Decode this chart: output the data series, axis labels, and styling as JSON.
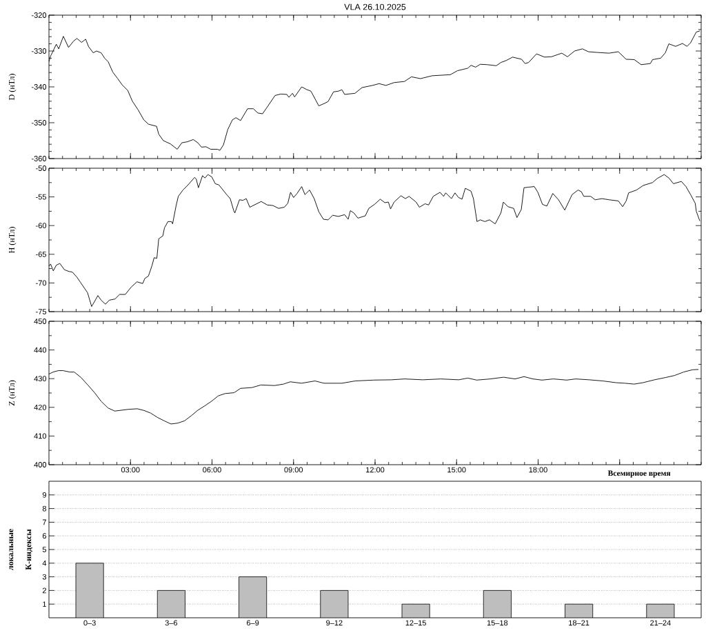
{
  "chart_data": [
    {
      "type": "line",
      "title": "VLA 26.10.2025",
      "ylabel": "D (нТл)",
      "color": "#000000",
      "x": [
        0,
        0.06,
        0.14,
        0.27,
        0.36,
        0.53,
        0.72,
        0.91,
        1.03,
        1.2,
        1.35,
        1.46,
        1.63,
        1.75,
        1.92,
        2.05,
        2.18,
        2.35,
        2.52,
        2.69,
        2.9,
        3.07,
        3.28,
        3.49,
        3.66,
        3.96,
        4.04,
        4.21,
        4.47,
        4.72,
        4.89,
        5.1,
        5.31,
        5.48,
        5.61,
        5.78,
        5.95,
        6.2,
        6.29,
        6.42,
        6.58,
        6.75,
        6.88,
        7.05,
        7.31,
        7.52,
        7.69,
        7.86,
        8.07,
        8.32,
        8.53,
        8.75,
        8.83,
        8.96,
        9.04,
        9.3,
        9.47,
        9.64,
        9.93,
        10.14,
        10.27,
        10.47,
        10.65,
        10.78,
        10.88,
        11.26,
        11.52,
        11.9,
        12.15,
        12.4,
        12.7,
        13.08,
        13.34,
        13.67,
        14.1,
        14.77,
        15.03,
        15.41,
        15.53,
        15.7,
        15.87,
        16.12,
        16.46,
        16.63,
        16.84,
        17.06,
        17.39,
        17.52,
        17.65,
        17.94,
        18.24,
        18.49,
        18.87,
        19.08,
        19.34,
        19.63,
        19.85,
        20.18,
        20.61,
        20.95,
        21.24,
        21.54,
        21.79,
        22.13,
        22.21,
        22.51,
        22.68,
        22.81,
        23.06,
        23.31,
        23.48,
        23.61,
        23.82,
        23.95
      ],
      "values": [
        -333.0,
        -331.4,
        -330.2,
        -328.1,
        -329.4,
        -325.9,
        -329.0,
        -327.2,
        -326.5,
        -327.6,
        -326.7,
        -328.8,
        -330.5,
        -330.0,
        -330.5,
        -332.0,
        -333.0,
        -335.9,
        -337.6,
        -339.4,
        -341.0,
        -344.0,
        -346.4,
        -349.2,
        -350.4,
        -351.0,
        -353.2,
        -355.0,
        -355.9,
        -357.4,
        -355.6,
        -355.3,
        -354.7,
        -355.6,
        -356.8,
        -356.7,
        -357.4,
        -357.4,
        -357.7,
        -356.2,
        -351.9,
        -349.2,
        -348.6,
        -349.4,
        -346.1,
        -346.1,
        -347.3,
        -347.5,
        -345.2,
        -342.4,
        -342.0,
        -342.1,
        -342.9,
        -341.8,
        -342.8,
        -340.0,
        -340.7,
        -341.2,
        -345.3,
        -344.6,
        -344.1,
        -341.4,
        -341.2,
        -340.8,
        -342.1,
        -341.8,
        -340.2,
        -339.6,
        -339.1,
        -339.6,
        -338.8,
        -338.5,
        -337.2,
        -337.7,
        -336.9,
        -336.6,
        -335.5,
        -334.8,
        -334.0,
        -334.5,
        -333.7,
        -333.8,
        -334.1,
        -333.2,
        -332.6,
        -331.7,
        -332.3,
        -333.5,
        -333.2,
        -330.8,
        -331.7,
        -331.6,
        -330.6,
        -331.6,
        -330.0,
        -329.4,
        -330.2,
        -330.4,
        -330.6,
        -330.2,
        -332.3,
        -332.4,
        -333.8,
        -333.5,
        -332.4,
        -332.0,
        -330.5,
        -328.0,
        -328.7,
        -327.9,
        -328.7,
        -327.7,
        -324.7,
        -324.4
      ],
      "xlim": [
        0,
        24
      ],
      "xticks": [
        3,
        6,
        9,
        12,
        15,
        18,
        21
      ],
      "ylim": [
        -360,
        -320
      ],
      "yticks": [
        -360,
        -350,
        -340,
        -330,
        -320
      ],
      "tick_labels": "y"
    },
    {
      "type": "line",
      "ylabel": "H (нТл)",
      "color": "#000000",
      "x": [
        0,
        0.06,
        0.16,
        0.27,
        0.4,
        0.57,
        0.74,
        0.86,
        1.03,
        1.16,
        1.29,
        1.42,
        1.57,
        1.67,
        1.8,
        1.92,
        2.08,
        2.22,
        2.43,
        2.6,
        2.81,
        3.03,
        3.24,
        3.45,
        3.53,
        3.66,
        3.79,
        3.87,
        3.97,
        4.04,
        4.19,
        4.25,
        4.38,
        4.51,
        4.55,
        4.68,
        4.76,
        4.93,
        5.1,
        5.23,
        5.36,
        5.42,
        5.5,
        5.65,
        5.74,
        5.85,
        5.99,
        6.12,
        6.25,
        6.37,
        6.54,
        6.67,
        6.8,
        6.84,
        7.01,
        7.14,
        7.26,
        7.39,
        7.6,
        7.81,
        8.03,
        8.24,
        8.45,
        8.66,
        8.79,
        8.89,
        9.0,
        9.13,
        9.3,
        9.42,
        9.59,
        9.76,
        9.93,
        10.1,
        10.27,
        10.44,
        10.65,
        10.88,
        11.01,
        11.09,
        11.22,
        11.37,
        11.64,
        11.77,
        11.98,
        12.19,
        12.36,
        12.49,
        12.57,
        12.7,
        12.95,
        13.12,
        13.25,
        13.51,
        13.63,
        13.84,
        13.97,
        14.14,
        14.39,
        14.52,
        14.6,
        14.81,
        14.94,
        15.07,
        15.2,
        15.32,
        15.53,
        15.62,
        15.75,
        15.87,
        16.04,
        16.21,
        16.42,
        16.63,
        16.72,
        16.89,
        17.1,
        17.22,
        17.38,
        17.48,
        17.65,
        17.86,
        17.99,
        18.16,
        18.32,
        18.54,
        18.75,
        18.98,
        19.25,
        19.47,
        19.59,
        19.68,
        19.93,
        20.1,
        20.35,
        20.61,
        20.95,
        21.11,
        21.24,
        21.33,
        21.62,
        21.87,
        22.21,
        22.38,
        22.64,
        22.81,
        22.98,
        23.27,
        23.44,
        23.61,
        23.78,
        23.82,
        23.95
      ],
      "values": [
        -67.1,
        -66.7,
        -67.9,
        -66.9,
        -66.6,
        -67.7,
        -68.0,
        -68.1,
        -69.0,
        -69.9,
        -70.8,
        -71.7,
        -74.1,
        -73.3,
        -72.2,
        -73.0,
        -73.7,
        -73.0,
        -72.8,
        -72.0,
        -72.0,
        -70.7,
        -69.8,
        -70.1,
        -69.2,
        -68.8,
        -67.0,
        -65.6,
        -65.7,
        -62.3,
        -61.8,
        -60.4,
        -59.3,
        -59.3,
        -59.7,
        -56.5,
        -54.9,
        -53.8,
        -53.0,
        -52.3,
        -51.6,
        -51.9,
        -53.4,
        -51.3,
        -51.7,
        -51.1,
        -51.5,
        -52.7,
        -52.9,
        -53.6,
        -54.6,
        -55.3,
        -57.4,
        -57.8,
        -55.5,
        -55.6,
        -55.3,
        -56.8,
        -56.3,
        -55.8,
        -56.4,
        -56.5,
        -57.0,
        -56.8,
        -56.1,
        -54.2,
        -55.1,
        -54.4,
        -53.2,
        -54.6,
        -53.8,
        -55.3,
        -57.6,
        -58.9,
        -59.0,
        -58.2,
        -58.4,
        -58.1,
        -58.9,
        -57.4,
        -57.8,
        -58.7,
        -58.3,
        -57.0,
        -56.3,
        -55.4,
        -56.0,
        -55.9,
        -57.1,
        -55.9,
        -54.8,
        -55.3,
        -54.9,
        -55.9,
        -56.8,
        -56.2,
        -56.4,
        -54.9,
        -54.2,
        -54.9,
        -54.3,
        -55.3,
        -54.3,
        -55.1,
        -55.4,
        -53.5,
        -54.0,
        -55.3,
        -59.3,
        -59.0,
        -59.3,
        -59.0,
        -59.7,
        -57.8,
        -55.9,
        -56.7,
        -57.0,
        -58.6,
        -57.2,
        -53.4,
        -53.3,
        -53.2,
        -54.2,
        -56.3,
        -56.6,
        -54.4,
        -55.5,
        -57.3,
        -54.6,
        -53.8,
        -54.1,
        -54.9,
        -54.9,
        -55.5,
        -55.3,
        -55.5,
        -55.7,
        -56.7,
        -55.7,
        -54.3,
        -53.8,
        -53.0,
        -52.5,
        -51.8,
        -51.1,
        -51.7,
        -52.7,
        -52.3,
        -53.2,
        -54.6,
        -56.1,
        -57.5,
        -59.2
      ],
      "xlim": [
        0,
        24
      ],
      "xticks": [
        3,
        6,
        9,
        12,
        15,
        18,
        21
      ],
      "ylim": [
        -75,
        -50
      ],
      "yticks": [
        -75,
        -70,
        -65,
        -60,
        -55,
        -50
      ],
      "tick_labels": "y"
    },
    {
      "type": "line",
      "ylabel": "Z (нТл)",
      "xlabel": "Всемирное время",
      "color": "#000000",
      "x": [
        0,
        0.15,
        0.35,
        0.52,
        0.77,
        0.93,
        1.18,
        1.43,
        1.68,
        1.92,
        2.17,
        2.42,
        2.59,
        2.92,
        3.25,
        3.5,
        3.74,
        3.99,
        4.24,
        4.49,
        4.74,
        4.99,
        5.24,
        5.48,
        5.73,
        5.98,
        6.23,
        6.48,
        6.81,
        7.05,
        7.47,
        7.8,
        8.3,
        8.63,
        8.88,
        9.29,
        9.79,
        10.12,
        10.78,
        11.27,
        11.94,
        12.6,
        13.09,
        13.76,
        14.42,
        15.08,
        15.41,
        15.74,
        16.24,
        16.73,
        17.15,
        17.48,
        17.81,
        18.14,
        18.56,
        19.05,
        19.38,
        19.88,
        20.38,
        20.87,
        21.2,
        21.53,
        21.86,
        22.28,
        22.69,
        23.02,
        23.35,
        23.68,
        23.9
      ],
      "values": [
        431.6,
        432.3,
        432.8,
        432.8,
        432.3,
        432.3,
        430.4,
        427.8,
        425.1,
        422.1,
        419.8,
        418.7,
        418.9,
        419.3,
        419.5,
        418.9,
        418.0,
        416.5,
        415.3,
        414.2,
        414.5,
        415.3,
        417.1,
        419.0,
        420.5,
        422.1,
        424.0,
        424.8,
        425.1,
        426.6,
        426.9,
        427.8,
        427.6,
        428.1,
        428.9,
        428.4,
        429.2,
        428.4,
        428.4,
        429.2,
        429.5,
        429.6,
        429.9,
        429.6,
        429.9,
        429.6,
        430.2,
        429.5,
        429.9,
        430.5,
        429.9,
        430.7,
        429.9,
        429.5,
        429.9,
        429.5,
        429.9,
        429.6,
        429.2,
        428.6,
        428.4,
        428.1,
        428.6,
        429.6,
        430.4,
        431.1,
        432.3,
        433.1,
        433.2
      ],
      "xlim": [
        0,
        24
      ],
      "xticks": [
        {
          "value": 3,
          "label": "03:00"
        },
        {
          "value": 6,
          "label": "06:00"
        },
        {
          "value": 9,
          "label": "09:00"
        },
        {
          "value": 12,
          "label": "12:00"
        },
        {
          "value": 15,
          "label": "15:00"
        },
        {
          "value": 18,
          "label": "18:00"
        },
        {
          "value": 21,
          "label": null
        }
      ],
      "ylim": [
        400,
        450
      ],
      "yticks": [
        400,
        410,
        420,
        430,
        440,
        450
      ]
    },
    {
      "type": "bar",
      "ylabel": "локальные К-индексы",
      "color": "#bebebe",
      "categories": [
        "0–3",
        "3–6",
        "6–9",
        "9–12",
        "12–15",
        "15–18",
        "18–21",
        "21–24"
      ],
      "values": [
        4,
        2,
        3,
        2,
        1,
        2,
        1,
        1
      ],
      "ylim": [
        0,
        10
      ],
      "yticks": [
        1,
        2,
        3,
        4,
        5,
        6,
        7,
        8,
        9
      ],
      "grid": "y"
    }
  ]
}
